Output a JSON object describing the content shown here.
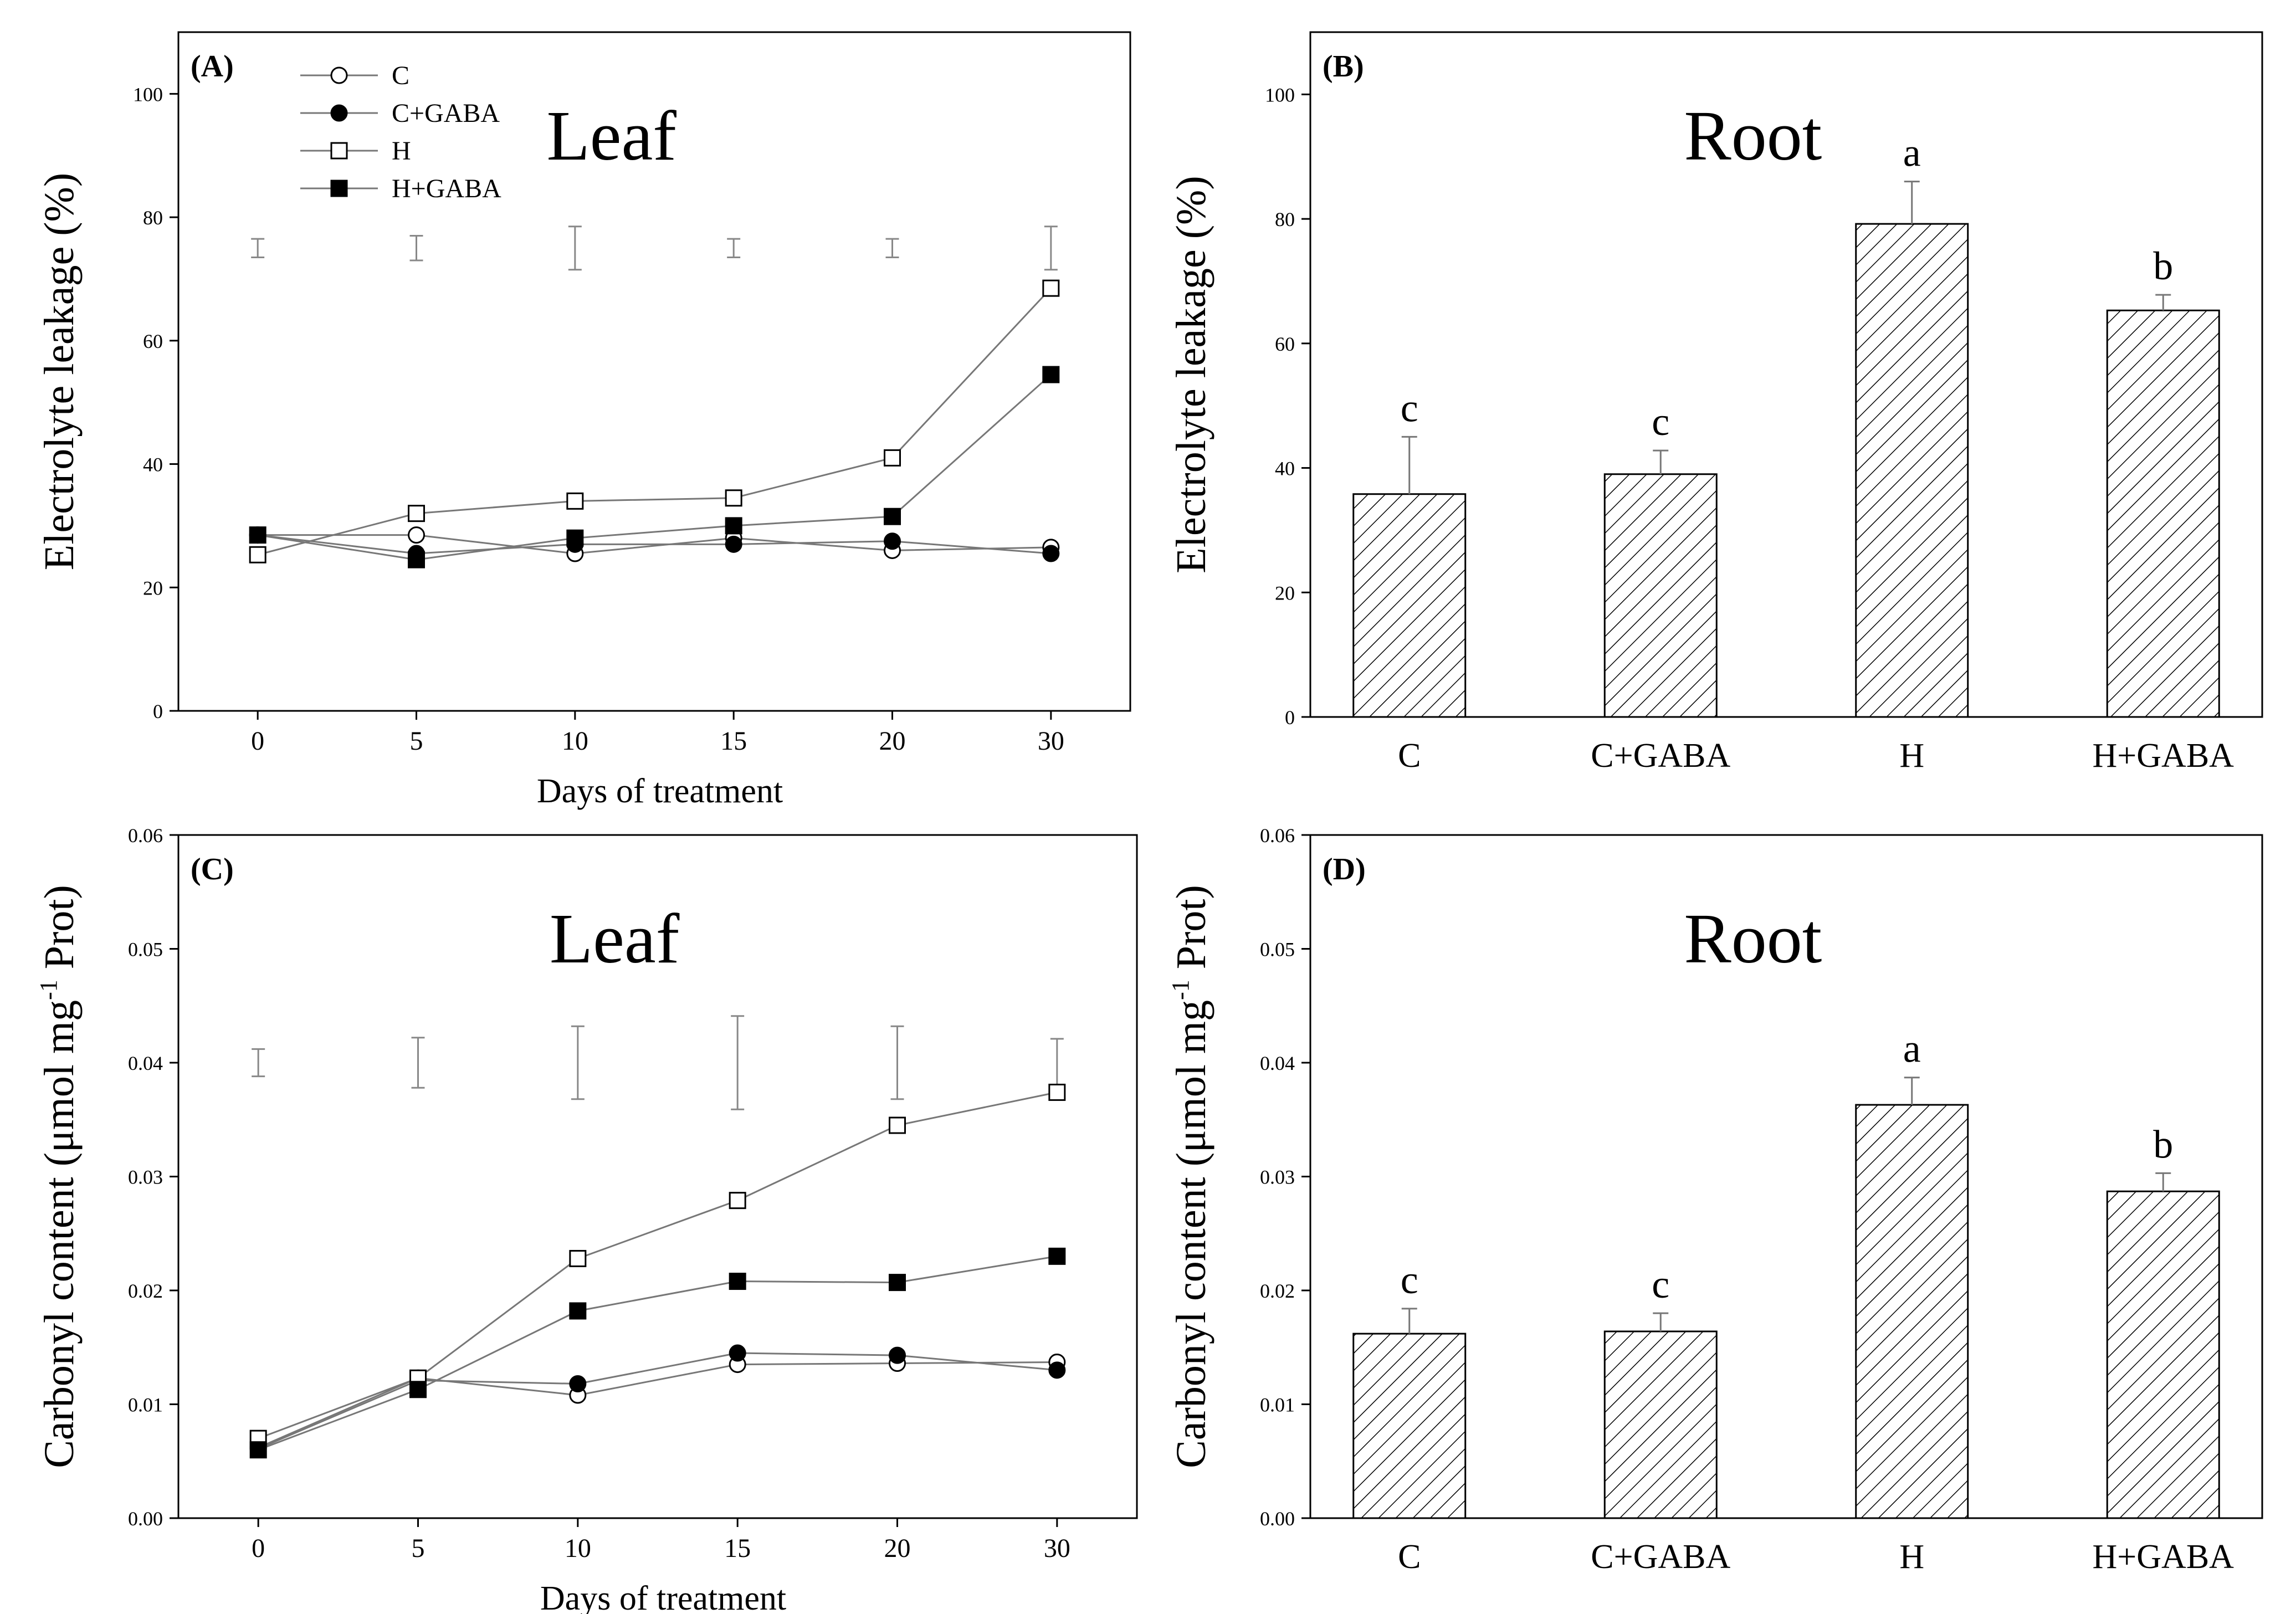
{
  "chart_data": [
    {
      "panel": "(A)",
      "type": "line",
      "title": "Leaf",
      "xlabel": "Days of treatment",
      "ylabel": "Electrolyte leakage (%)",
      "xlim": [
        -25,
        275
      ],
      "ylim": [
        0,
        110
      ],
      "x_ticks": [
        0,
        5,
        10,
        15,
        20,
        30
      ],
      "y_ticks": [
        0,
        20,
        40,
        60,
        80,
        100
      ],
      "y_tick_labels": [
        "0",
        "20",
        "40",
        "60",
        "80",
        "100"
      ],
      "x": [
        0,
        5,
        10,
        15,
        20,
        30
      ],
      "series": [
        {
          "name": "C",
          "marker": "open-circle",
          "values": [
            28.5,
            28.5,
            25.5,
            28.0,
            26.0,
            26.5
          ]
        },
        {
          "name": "C+GABA",
          "marker": "filled-circle",
          "values": [
            28.5,
            25.5,
            27.0,
            27.0,
            27.5,
            25.5
          ]
        },
        {
          "name": "H",
          "marker": "open-square",
          "values": [
            25.3,
            32.0,
            34.0,
            34.5,
            41.0,
            68.5
          ]
        },
        {
          "name": "H+GABA",
          "marker": "filled-square",
          "values": [
            28.5,
            24.5,
            28.0,
            30.0,
            31.5,
            54.5
          ]
        }
      ],
      "error_bars": [
        {
          "x": 0,
          "low": 73.5,
          "high": 76.5
        },
        {
          "x": 5,
          "low": 73.0,
          "high": 77.0
        },
        {
          "x": 10,
          "low": 71.5,
          "high": 78.5
        },
        {
          "x": 15,
          "low": 73.5,
          "high": 76.5
        },
        {
          "x": 20,
          "low": 73.5,
          "high": 76.5
        },
        {
          "x": 30,
          "low": 71.5,
          "high": 78.5
        }
      ],
      "legend_position": "top-left"
    },
    {
      "panel": "(B)",
      "type": "bar",
      "title": "Root",
      "xlabel": "",
      "ylabel": "Electrolyte leakage (%)",
      "ylim": [
        0,
        110
      ],
      "y_ticks": [
        0,
        20,
        40,
        60,
        80,
        100
      ],
      "y_tick_labels": [
        "0",
        "20",
        "40",
        "60",
        "80",
        "100"
      ],
      "categories": [
        "C",
        "C+GABA",
        "H",
        "H+GABA"
      ],
      "values": [
        35.8,
        39.0,
        79.2,
        65.3
      ],
      "errors": [
        9.2,
        3.8,
        6.8,
        2.5
      ],
      "letters": [
        "c",
        "c",
        "a",
        "b"
      ]
    },
    {
      "panel": "(C)",
      "type": "line",
      "title": "Leaf",
      "xlabel": "Days of treatment",
      "ylabel": "Carbonyl content (μmol mg",
      "ylabel_sup": "-1",
      "ylabel_suffix": " Prot)",
      "xlim": [
        -25,
        275
      ],
      "ylim": [
        0,
        0.06
      ],
      "x_ticks": [
        0,
        5,
        10,
        15,
        20,
        30
      ],
      "y_ticks": [
        0,
        0.01,
        0.02,
        0.03,
        0.04,
        0.05,
        0.06
      ],
      "y_tick_labels": [
        "0.00",
        "0.01",
        "0.02",
        "0.03",
        "0.04",
        "0.05",
        "0.06"
      ],
      "x": [
        0,
        5,
        10,
        15,
        20,
        30
      ],
      "series": [
        {
          "name": "C",
          "marker": "open-circle",
          "values": [
            0.0062,
            0.0123,
            0.0108,
            0.0135,
            0.0136,
            0.0137
          ]
        },
        {
          "name": "C+GABA",
          "marker": "filled-circle",
          "values": [
            0.0061,
            0.0121,
            0.0118,
            0.0145,
            0.0143,
            0.013
          ]
        },
        {
          "name": "H",
          "marker": "open-square",
          "values": [
            0.007,
            0.0123,
            0.0228,
            0.0279,
            0.0345,
            0.0374
          ]
        },
        {
          "name": "H+GABA",
          "marker": "filled-square",
          "values": [
            0.006,
            0.0113,
            0.0182,
            0.0208,
            0.0207,
            0.023
          ]
        }
      ],
      "error_bars": [
        {
          "x": 0,
          "low": 0.0388,
          "high": 0.0412
        },
        {
          "x": 5,
          "low": 0.0378,
          "high": 0.0422
        },
        {
          "x": 10,
          "low": 0.0368,
          "high": 0.0432
        },
        {
          "x": 15,
          "low": 0.0359,
          "high": 0.0441
        },
        {
          "x": 20,
          "low": 0.0368,
          "high": 0.0432
        },
        {
          "x": 30,
          "low": 0.0378,
          "high": 0.0421
        }
      ]
    },
    {
      "panel": "(D)",
      "type": "bar",
      "title": "Root",
      "xlabel": "",
      "ylabel": "Carbonyl content (μmol mg",
      "ylabel_sup": "-1",
      "ylabel_suffix": " Prot)",
      "ylim": [
        0,
        0.06
      ],
      "y_ticks": [
        0,
        0.01,
        0.02,
        0.03,
        0.04,
        0.05,
        0.06
      ],
      "y_tick_labels": [
        "0.00",
        "0.01",
        "0.02",
        "0.03",
        "0.04",
        "0.05",
        "0.06"
      ],
      "categories": [
        "C",
        "C+GABA",
        "H",
        "H+GABA"
      ],
      "values": [
        0.0162,
        0.0164,
        0.0363,
        0.0287
      ],
      "errors": [
        0.0022,
        0.0016,
        0.0024,
        0.0016
      ],
      "letters": [
        "c",
        "c",
        "a",
        "b"
      ]
    }
  ]
}
